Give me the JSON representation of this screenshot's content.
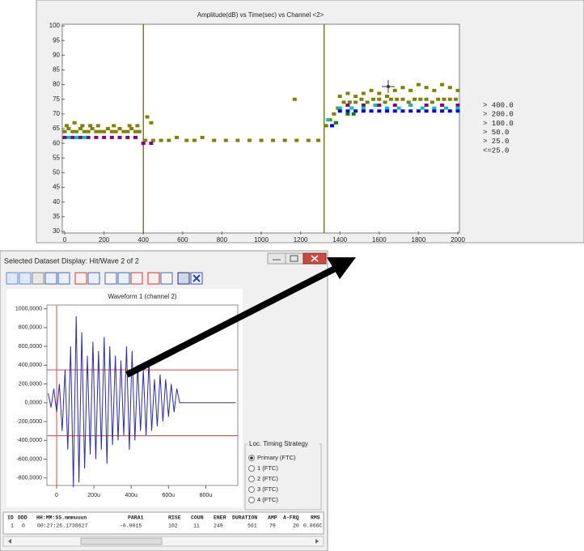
{
  "top_window": {
    "chart_data": {
      "type": "scatter",
      "title": "Amplitude(dB) vs Time(sec) vs Channel <2>",
      "xlim": [
        0,
        2000
      ],
      "ylim": [
        30,
        100
      ],
      "xticks": [
        0,
        200,
        400,
        600,
        800,
        1000,
        1200,
        1400,
        1600,
        1800,
        2000
      ],
      "yticks": [
        30,
        35,
        40,
        45,
        50,
        55,
        60,
        65,
        70,
        75,
        80,
        85,
        90,
        95,
        100
      ],
      "markers": {
        "color": "#5a5a00",
        "x": [
          400,
          1320
        ]
      },
      "series": [
        {
          "name": "> 400.0",
          "color": "#ff2020",
          "x": [],
          "y": []
        },
        {
          "name": "> 200.0",
          "color": "#008000",
          "x": [
            1380,
            1440,
            1470
          ],
          "y": [
            67,
            70,
            70
          ]
        },
        {
          "name": "> 100.0",
          "color": "#0000ff",
          "x": [
            1360,
            1400,
            1440,
            1480,
            1520,
            1560,
            1600,
            1640,
            1680,
            1720,
            1760,
            1800,
            1840,
            1880,
            1920,
            1960,
            2000
          ],
          "y": [
            66,
            71,
            71,
            71,
            71,
            71,
            71,
            71,
            71,
            71,
            71,
            71,
            71,
            71,
            71,
            71,
            71
          ]
        },
        {
          "name": "> 50.0",
          "color": "#00c0c0",
          "x": [
            20,
            60,
            100,
            1340,
            1400,
            1460,
            1520,
            1580,
            1640,
            1700,
            1760,
            1820,
            1880,
            1940,
            2000
          ],
          "y": [
            62,
            62,
            62,
            68,
            72,
            72,
            72,
            73,
            72,
            72,
            73,
            72,
            72,
            72,
            72
          ]
        },
        {
          "name": "> 25.0",
          "color": "#800080",
          "x": [
            0,
            40,
            80,
            120,
            160,
            200,
            240,
            280,
            320,
            360,
            400,
            440,
            1440,
            1520,
            1600,
            1680,
            1760,
            1840,
            1920,
            2000
          ],
          "y": [
            62,
            62,
            62,
            62,
            62,
            62,
            62,
            62,
            62,
            62,
            60,
            60,
            73,
            73,
            73,
            73,
            73,
            73,
            73,
            73
          ]
        },
        {
          "name": "<=25.0",
          "color": "#808000",
          "x": [
            0,
            20,
            40,
            60,
            80,
            100,
            120,
            140,
            160,
            180,
            200,
            220,
            240,
            260,
            280,
            300,
            320,
            340,
            360,
            380,
            10,
            50,
            90,
            130,
            170,
            250,
            330,
            370,
            410,
            450,
            490,
            530,
            570,
            620,
            660,
            700,
            760,
            820,
            880,
            940,
            1000,
            1060,
            1120,
            1180,
            1240,
            1290,
            420,
            440,
            1170,
            1330,
            1350,
            1370,
            1390,
            1420,
            1450,
            1480,
            1510,
            1540,
            1570,
            1600,
            1630,
            1660,
            1690,
            1720,
            1750,
            1780,
            1810,
            1840,
            1870,
            1900,
            1930,
            1960,
            1990,
            1400,
            1440,
            1480,
            1520,
            1560,
            1600,
            1640,
            1680,
            1720,
            1760,
            1800,
            1840,
            1880,
            1920,
            1960,
            2000
          ],
          "y": [
            64,
            65,
            64,
            64,
            65,
            64,
            64,
            65,
            64,
            64,
            64,
            65,
            64,
            64,
            65,
            64,
            64,
            65,
            64,
            64,
            66,
            67,
            66,
            66,
            66,
            66,
            66,
            66,
            61,
            61,
            61,
            61,
            62,
            61,
            61,
            62,
            61,
            61,
            61,
            61,
            61,
            61,
            61,
            61,
            61,
            61,
            69,
            67,
            75,
            66,
            68,
            70,
            72,
            74,
            74,
            74,
            75,
            74,
            75,
            75,
            74,
            75,
            75,
            75,
            74,
            75,
            75,
            75,
            74,
            75,
            75,
            75,
            75,
            76,
            77,
            76,
            77,
            78,
            77,
            76,
            78,
            79,
            78,
            80,
            79,
            78,
            80,
            79,
            78
          ]
        }
      ]
    }
  },
  "dataset_window": {
    "title": "Selected Dataset Display: Hit/Wave 2 of 2",
    "chart_data": {
      "type": "line",
      "title": "Waveform 1 (channel 2)",
      "color": "#2b2bb0",
      "xlim": [
        -52,
        972
      ],
      "ylim": [
        -880,
        1040
      ],
      "xticks": [
        0,
        {
          "value": 200,
          "label": "200u"
        },
        {
          "value": 400,
          "label": "400u"
        },
        {
          "value": 600,
          "label": "600u"
        },
        {
          "value": 800,
          "label": "800u"
        }
      ],
      "yticks": [
        {
          "value": 1000,
          "label": "1000,0000"
        },
        {
          "value": 800,
          "label": "800,0000"
        },
        {
          "value": 600,
          "label": "600,0000"
        },
        {
          "value": 400,
          "label": "400,0000"
        },
        {
          "value": 200,
          "label": "200,0000"
        },
        {
          "value": 0,
          "label": "0,0000"
        },
        {
          "value": -200,
          "label": "-200,0000"
        },
        {
          "value": -400,
          "label": "-400,0000"
        },
        {
          "value": -600,
          "label": "-600,0000"
        },
        {
          "value": -800,
          "label": "-800,0000"
        }
      ],
      "thresholds": [
        350,
        -350
      ],
      "trigger_x": 0,
      "guide_color": "#e04848",
      "x": [
        -45,
        -30,
        -15,
        0,
        15,
        30,
        45,
        60,
        75,
        90,
        105,
        120,
        135,
        150,
        165,
        180,
        195,
        210,
        225,
        240,
        255,
        270,
        285,
        300,
        315,
        330,
        345,
        360,
        375,
        390,
        405,
        420,
        435,
        450,
        465,
        480,
        495,
        510,
        525,
        540,
        555,
        570,
        585,
        600,
        615,
        630,
        645,
        660,
        960
      ],
      "values": [
        100,
        -50,
        150,
        -100,
        200,
        -300,
        350,
        -500,
        600,
        -900,
        920,
        -850,
        750,
        -700,
        500,
        -550,
        650,
        -600,
        550,
        -500,
        700,
        -650,
        600,
        -450,
        500,
        -400,
        450,
        -350,
        600,
        -500,
        550,
        -400,
        400,
        -300,
        350,
        -350,
        450,
        -300,
        250,
        -250,
        300,
        -200,
        250,
        -150,
        200,
        -100,
        150,
        0,
        0
      ]
    },
    "timing_strategy": {
      "title": "Loc. Timing Strategy",
      "options": [
        "Primary (FTC)",
        "1  (FTC)",
        "2  (FTC)",
        "3  (FTC)",
        "4  (FTC)"
      ],
      "selected": 0
    },
    "table": {
      "columns": [
        "ID",
        "DDD",
        "HH:MM:SS.mmmuuun",
        "PARA1",
        "RISE",
        "COUN",
        "ENER",
        "DURATION",
        "AMP",
        "A-FRQ",
        "RMS"
      ],
      "rows": [
        [
          "1",
          "0",
          "00:27:26.1738627",
          "-0.0015",
          "102",
          "11",
          "249",
          "561",
          "79",
          "20",
          "0.066C"
        ]
      ]
    }
  }
}
